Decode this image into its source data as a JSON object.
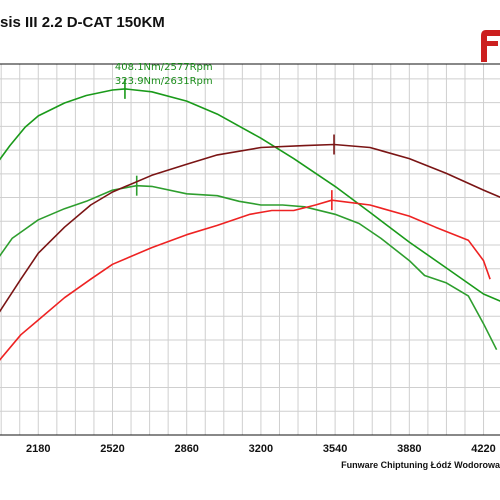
{
  "title": "sis III 2.2 D-CAT 150KM",
  "footer": "Funware Chiptuning Łódź Wodorowa",
  "colors": {
    "tuned_torque": "#1a9a1a",
    "stock_torque": "#2e9e2e",
    "tuned_power": "#7a1414",
    "stock_power": "#ee2222",
    "grid": "#cfcfcf",
    "logo": "#cc1f1f"
  },
  "logo_icon": "brand-logo-icon",
  "chart_data": {
    "type": "line",
    "title": "",
    "xlabel": "",
    "ylabel": "",
    "xlim": [
      2000,
      4300
    ],
    "x_ticks": [
      2180,
      2520,
      2860,
      3200,
      3540,
      3880,
      4220
    ],
    "ylim": [
      0,
      100
    ],
    "grid": true,
    "annotations": [
      {
        "text": "408.1Nm/2577Rpm",
        "x": 2577,
        "y": 94
      },
      {
        "text": "323.9Nm/2631Rpm",
        "x": 2631,
        "y": 90
      }
    ],
    "series": [
      {
        "color": "#1a9a1a",
        "marker_x": 2577,
        "points": [
          [
            2000,
            74
          ],
          [
            2050,
            78
          ],
          [
            2120,
            83
          ],
          [
            2180,
            86
          ],
          [
            2300,
            89.5
          ],
          [
            2400,
            91.5
          ],
          [
            2520,
            93
          ],
          [
            2577,
            93.3
          ],
          [
            2700,
            92.5
          ],
          [
            2860,
            90
          ],
          [
            3000,
            86.5
          ],
          [
            3200,
            80
          ],
          [
            3350,
            74.5
          ],
          [
            3540,
            67
          ],
          [
            3700,
            60
          ],
          [
            3880,
            52
          ],
          [
            4050,
            45
          ],
          [
            4220,
            38
          ],
          [
            4300,
            36
          ]
        ]
      },
      {
        "color": "#2e9e2e",
        "marker_x": 2631,
        "points": [
          [
            2000,
            48
          ],
          [
            2060,
            53
          ],
          [
            2120,
            55.5
          ],
          [
            2180,
            58
          ],
          [
            2300,
            61
          ],
          [
            2400,
            63
          ],
          [
            2520,
            66
          ],
          [
            2631,
            67.2
          ],
          [
            2700,
            67
          ],
          [
            2860,
            65
          ],
          [
            3000,
            64.5
          ],
          [
            3100,
            63
          ],
          [
            3200,
            62
          ],
          [
            3300,
            62
          ],
          [
            3400,
            61.5
          ],
          [
            3540,
            59.5
          ],
          [
            3650,
            57
          ],
          [
            3750,
            53
          ],
          [
            3880,
            47
          ],
          [
            3950,
            43
          ],
          [
            4050,
            41
          ],
          [
            4150,
            37.5
          ],
          [
            4220,
            30
          ],
          [
            4280,
            23
          ]
        ]
      },
      {
        "color": "#7a1414",
        "marker_x": 3535,
        "points": [
          [
            2000,
            33
          ],
          [
            2100,
            42
          ],
          [
            2180,
            49
          ],
          [
            2300,
            56
          ],
          [
            2420,
            62
          ],
          [
            2520,
            65.5
          ],
          [
            2700,
            70
          ],
          [
            2860,
            73
          ],
          [
            3000,
            75.5
          ],
          [
            3200,
            77.5
          ],
          [
            3400,
            78
          ],
          [
            3535,
            78.3
          ],
          [
            3700,
            77.5
          ],
          [
            3880,
            74.5
          ],
          [
            4050,
            70.5
          ],
          [
            4220,
            66
          ],
          [
            4300,
            64
          ]
        ]
      },
      {
        "color": "#ee2222",
        "marker_x": 3525,
        "points": [
          [
            2000,
            20
          ],
          [
            2100,
            27
          ],
          [
            2180,
            31
          ],
          [
            2300,
            37
          ],
          [
            2420,
            42
          ],
          [
            2520,
            46
          ],
          [
            2700,
            50.5
          ],
          [
            2860,
            54
          ],
          [
            3000,
            56.5
          ],
          [
            3150,
            59.5
          ],
          [
            3250,
            60.5
          ],
          [
            3350,
            60.5
          ],
          [
            3450,
            62
          ],
          [
            3525,
            63.3
          ],
          [
            3700,
            62
          ],
          [
            3880,
            59
          ],
          [
            4000,
            56
          ],
          [
            4150,
            52.5
          ],
          [
            4220,
            47
          ],
          [
            4250,
            42
          ]
        ]
      }
    ]
  }
}
